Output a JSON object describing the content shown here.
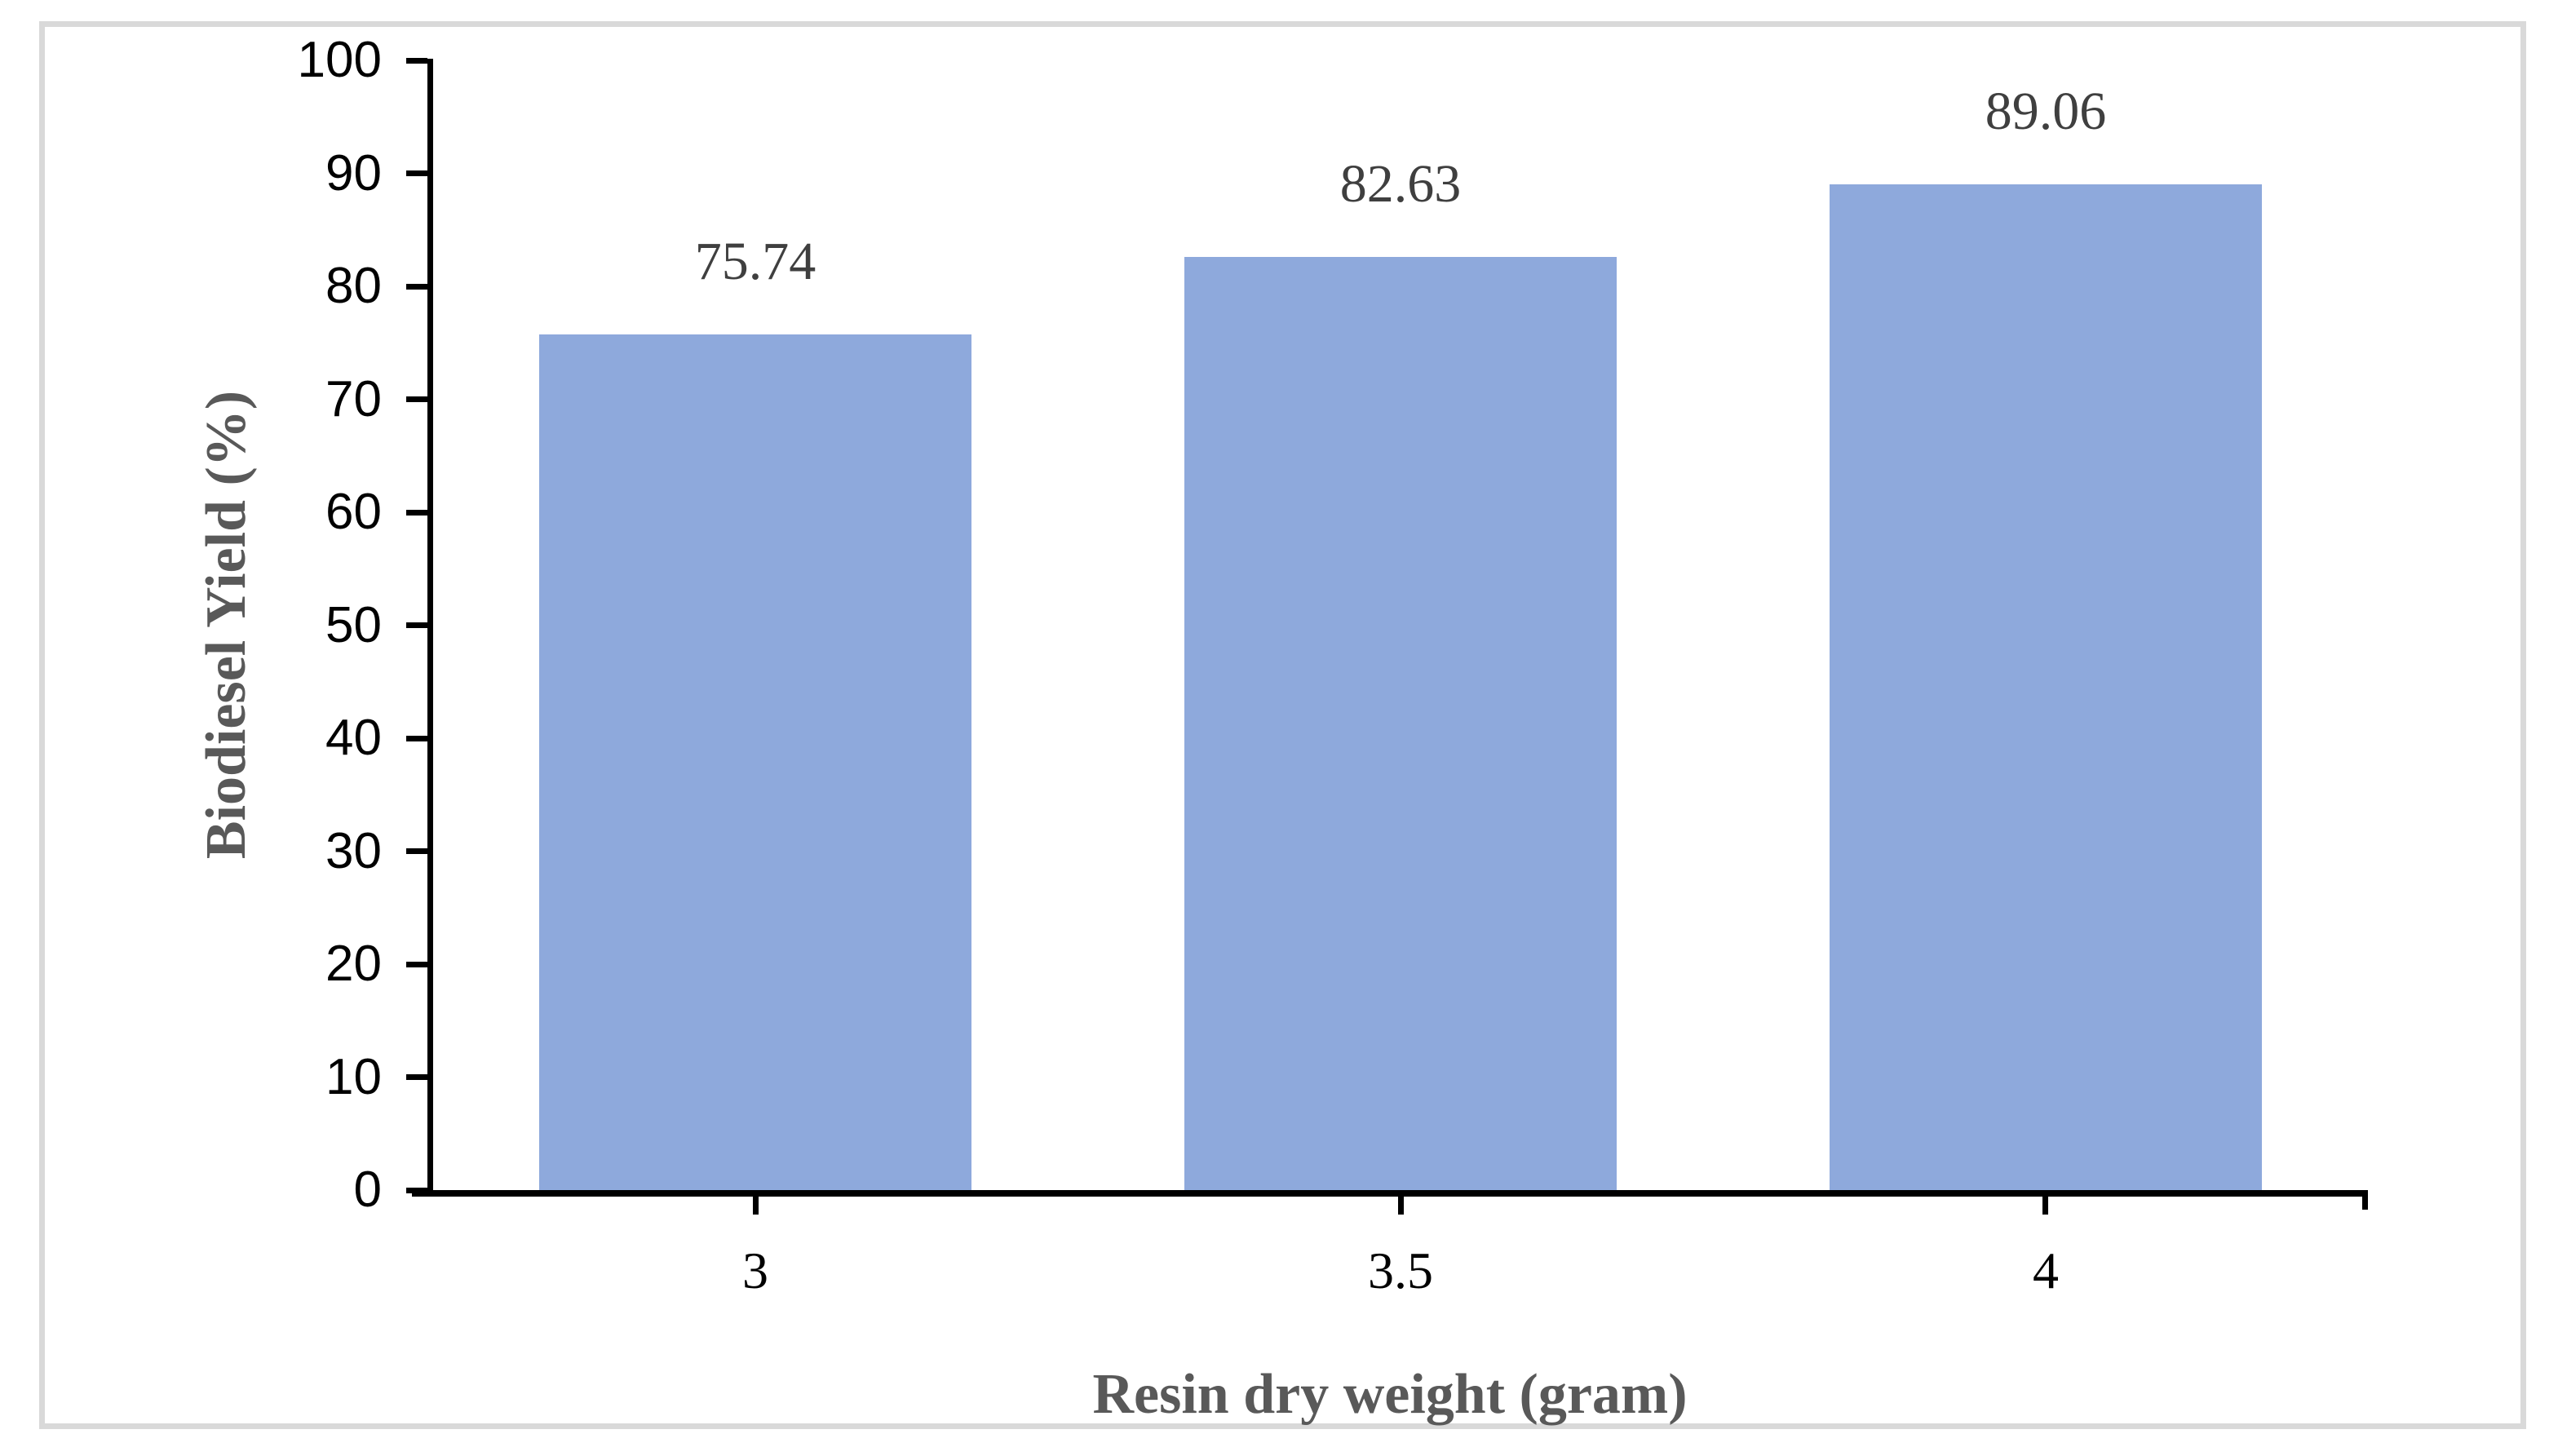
{
  "chart_data": {
    "type": "bar",
    "categories": [
      "3",
      "3.5",
      "4"
    ],
    "values": [
      75.74,
      82.63,
      89.06
    ],
    "data_labels": [
      "75.74",
      "82.63",
      "89.06"
    ],
    "title": "",
    "xlabel": "Resin dry weight (gram)",
    "ylabel": "Biodiesel Yield (%)",
    "ylim": [
      0,
      100
    ],
    "yticks": [
      0,
      10,
      20,
      30,
      40,
      50,
      60,
      70,
      80,
      90,
      100
    ],
    "grid": false,
    "legend": false,
    "colors": {
      "bar_fill": "#8ea9dc",
      "axis": "#000000",
      "tick_label": "#000000",
      "data_label": "#3f3f3f",
      "axis_title": "#595959",
      "frame_border": "#d9d9d9",
      "background": "#ffffff"
    }
  }
}
